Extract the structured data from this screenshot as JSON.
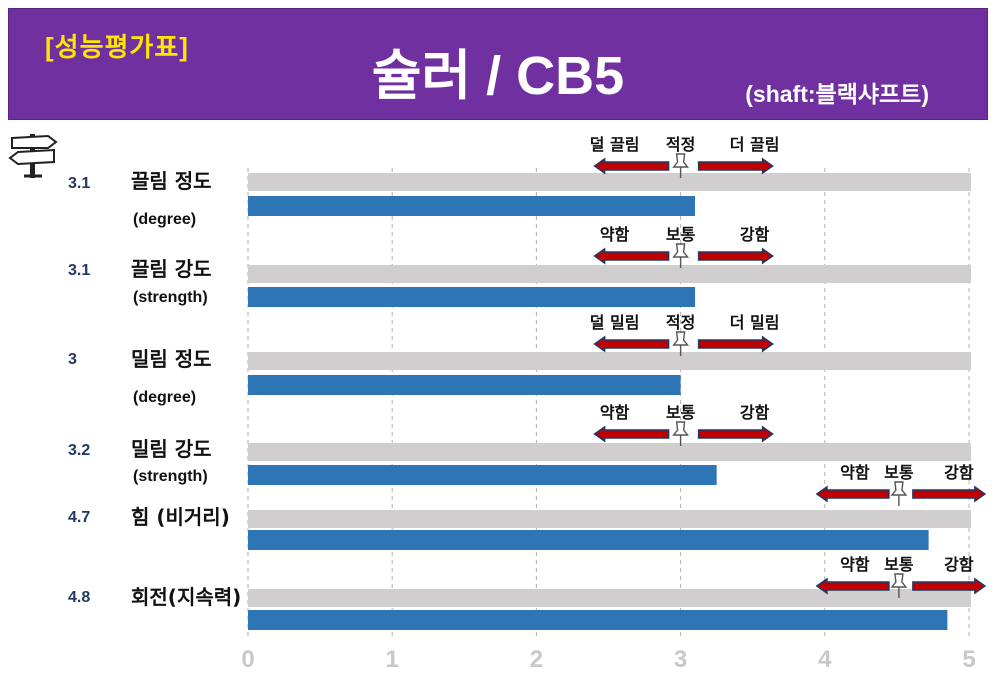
{
  "header": {
    "tag": "[성능평가표]",
    "title": "슐러 / CB5",
    "subtitle": "(shaft:블랙샤프트)"
  },
  "signpost_icon": "signpost-icon",
  "pin_icon": "pushpin-icon",
  "colors": {
    "banner": "#7030A0",
    "tag": "#FFE600",
    "bar": "#2E75B6",
    "track": "#D0CECE",
    "arrow_fill": "#C00000",
    "arrow_stroke": "#1F3864",
    "value_text": "#1F3864",
    "tick_text": "#C8C8C8"
  },
  "chart_data": {
    "type": "bar",
    "orientation": "horizontal",
    "xlim": [
      0,
      5
    ],
    "ticks": [
      "0",
      "1",
      "2",
      "3",
      "4",
      "5"
    ],
    "grid": true,
    "categories": [
      {
        "label": "끌림 정도",
        "sublabel": "(degree)",
        "value": 3.1,
        "value_label": "3.1",
        "indicator": {
          "left": "덜 끌림",
          "center": "적정",
          "right": "더 끌림",
          "position": 3.0
        }
      },
      {
        "label": "끌림 강도",
        "sublabel": "(strength)",
        "value": 3.1,
        "value_label": "3.1",
        "indicator": {
          "left": "약함",
          "center": "보통",
          "right": "강함",
          "position": 3.0
        }
      },
      {
        "label": "밀림 정도",
        "sublabel": "(degree)",
        "value": 3.0,
        "value_label": "3",
        "indicator": {
          "left": "덜 밀림",
          "center": "적정",
          "right": "더 밀림",
          "position": 3.0
        }
      },
      {
        "label": "밀림 강도",
        "sublabel": "(strength)",
        "value": 3.25,
        "value_label": "3.2",
        "indicator": {
          "left": "약함",
          "center": "보통",
          "right": "강함",
          "position": 3.0
        }
      },
      {
        "label": "힘 (비거리)",
        "sublabel": "",
        "value": 4.72,
        "value_label": "4.7",
        "indicator": {
          "left": "약함",
          "center": "보통",
          "right": "강함",
          "position": 4.5
        }
      },
      {
        "label": "회전(지속력)",
        "sublabel": "",
        "value": 4.85,
        "value_label": "4.8",
        "indicator": {
          "left": "약함",
          "center": "보통",
          "right": "강함",
          "position": 4.5
        }
      }
    ]
  }
}
